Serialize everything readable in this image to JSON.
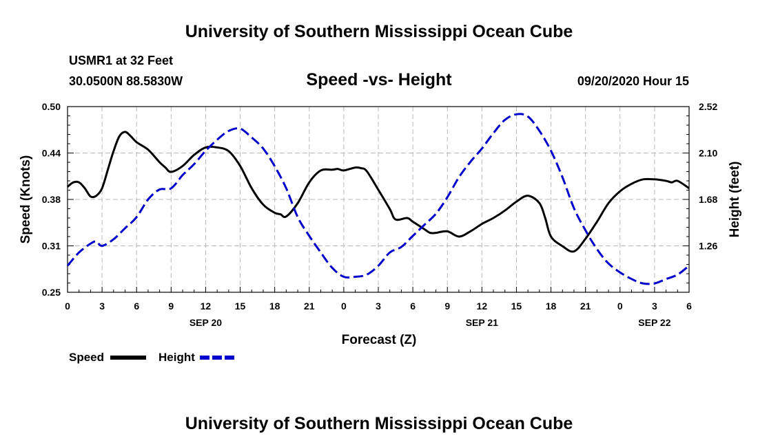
{
  "header": {
    "title": "University of Southern Mississippi Ocean Cube",
    "station": "USMR1 at 32 Feet",
    "coords": "30.0500N 88.5830W",
    "chart_title": "Speed -vs- Height",
    "date": "09/20/2020 Hour 15"
  },
  "footer": {
    "title": "University of Southern Mississippi Ocean Cube"
  },
  "chart_data": {
    "type": "line",
    "title": "Speed -vs- Height",
    "xlabel": "Forecast (Z)",
    "ylabel_left": "Speed (Knots)",
    "ylabel_right": "Height (feet)",
    "x_unit": "hours since 09/20/2020 00Z",
    "xlim": [
      0,
      54
    ],
    "ylim_left": [
      0.25,
      0.5
    ],
    "ylim_right": [
      0.84,
      2.52
    ],
    "grid": true,
    "left_ticks": [
      "0.50",
      "0.44",
      "0.38",
      "0.31",
      "0.25"
    ],
    "left_tick_values": [
      0.5,
      0.4375,
      0.375,
      0.3125,
      0.25
    ],
    "right_ticks": [
      "2.52",
      "2.10",
      "1.68",
      "1.26"
    ],
    "right_tick_values": [
      2.52,
      2.1,
      1.68,
      1.26
    ],
    "x_tick_labels": [
      "0",
      "3",
      "6",
      "9",
      "12",
      "15",
      "18",
      "21",
      "0",
      "3",
      "6",
      "9",
      "12",
      "15",
      "18",
      "21",
      "0",
      "3",
      "6"
    ],
    "x_tick_values": [
      0,
      3,
      6,
      9,
      12,
      15,
      18,
      21,
      24,
      27,
      30,
      33,
      36,
      39,
      42,
      45,
      48,
      51,
      54
    ],
    "date_labels": [
      {
        "label": "SEP 20",
        "x": 12
      },
      {
        "label": "SEP 21",
        "x": 36
      },
      {
        "label": "SEP 22",
        "x": 51
      }
    ],
    "legend": [
      {
        "name": "Speed",
        "color": "#000000",
        "style": "solid"
      },
      {
        "name": "Height",
        "color": "#0000cc",
        "style": "dashed"
      }
    ],
    "series": [
      {
        "name": "Speed",
        "axis": "left",
        "color": "#000000",
        "style": "solid",
        "x": [
          0,
          0.5,
          1,
          1.5,
          2,
          2.5,
          3,
          3.5,
          4,
          4.5,
          5,
          5.5,
          6,
          7,
          8,
          8.5,
          9,
          10,
          11,
          12,
          13,
          14,
          15,
          16,
          17,
          18,
          18.5,
          19,
          20,
          21,
          22,
          23,
          23.5,
          24,
          25,
          25.5,
          26,
          27,
          28,
          28.5,
          29.5,
          30,
          31,
          31.5,
          32,
          33,
          34,
          35,
          36,
          37,
          38,
          39,
          40,
          41,
          41.5,
          42,
          43,
          44,
          45,
          46,
          47,
          48,
          49,
          50,
          51,
          52,
          52.5,
          53,
          54
        ],
        "values": [
          0.392,
          0.398,
          0.398,
          0.39,
          0.379,
          0.38,
          0.39,
          0.415,
          0.44,
          0.46,
          0.466,
          0.46,
          0.452,
          0.442,
          0.425,
          0.418,
          0.412,
          0.42,
          0.435,
          0.445,
          0.445,
          0.44,
          0.42,
          0.39,
          0.368,
          0.357,
          0.355,
          0.352,
          0.37,
          0.398,
          0.414,
          0.415,
          0.416,
          0.414,
          0.418,
          0.417,
          0.413,
          0.388,
          0.362,
          0.348,
          0.35,
          0.345,
          0.335,
          0.33,
          0.33,
          0.332,
          0.325,
          0.332,
          0.342,
          0.35,
          0.36,
          0.372,
          0.38,
          0.37,
          0.35,
          0.325,
          0.312,
          0.305,
          0.322,
          0.345,
          0.37,
          0.386,
          0.396,
          0.402,
          0.402,
          0.4,
          0.398,
          0.4,
          0.39
        ]
      },
      {
        "name": "Height",
        "axis": "right",
        "color": "#0000cc",
        "style": "dashed",
        "x": [
          0,
          1,
          2,
          2.5,
          3,
          4,
          5,
          6,
          7,
          8,
          9,
          10,
          11,
          12,
          13,
          14,
          15,
          16,
          17,
          18,
          19,
          20,
          21,
          22,
          23,
          24,
          25,
          26,
          27,
          28,
          29,
          30,
          31,
          32,
          33,
          34,
          35,
          36,
          37,
          38,
          39,
          40,
          41,
          42,
          43,
          44,
          45,
          46,
          47,
          48,
          49,
          50,
          51,
          52,
          53,
          54
        ],
        "values": [
          1.08,
          1.2,
          1.28,
          1.3,
          1.26,
          1.32,
          1.42,
          1.52,
          1.68,
          1.77,
          1.78,
          1.9,
          2.0,
          2.12,
          2.22,
          2.3,
          2.32,
          2.24,
          2.14,
          1.98,
          1.78,
          1.52,
          1.35,
          1.2,
          1.06,
          0.98,
          0.98,
          1.0,
          1.08,
          1.2,
          1.25,
          1.35,
          1.45,
          1.55,
          1.7,
          1.88,
          2.02,
          2.14,
          2.28,
          2.4,
          2.45,
          2.43,
          2.3,
          2.12,
          1.88,
          1.6,
          1.4,
          1.23,
          1.1,
          1.02,
          0.96,
          0.92,
          0.92,
          0.96,
          1.0,
          1.08
        ]
      }
    ]
  }
}
